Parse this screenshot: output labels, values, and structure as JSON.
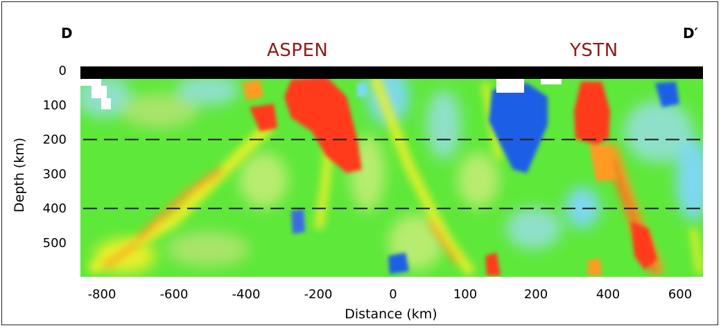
{
  "chart_data": {
    "type": "heatmap",
    "title": "",
    "section_labels": {
      "left": "D",
      "right": "D′"
    },
    "annotations": [
      "ASPEN",
      "YSTN"
    ],
    "xlabel": "Distance (km)",
    "ylabel": "Depth (km)",
    "xlim": [
      -880,
      650
    ],
    "ylim": [
      0,
      590
    ],
    "y_inverted": true,
    "x_ticks": [
      -800,
      -600,
      -400,
      -200,
      0,
      100,
      200,
      400,
      600
    ],
    "y_ticks": [
      0,
      100,
      200,
      300,
      400,
      500
    ],
    "reference_lines_depth_km": [
      200,
      400
    ],
    "colors": {
      "background": "#5ee83a",
      "slow_anomaly": "#ff3a1a",
      "moderate_slow": "#ff9a20",
      "weak_slow": "#e6f02a",
      "weak_fast": "#8fe0c8",
      "fast": "#7ed8f0",
      "strong_fast": "#1e5ee6",
      "surface_band": "#000000"
    }
  }
}
